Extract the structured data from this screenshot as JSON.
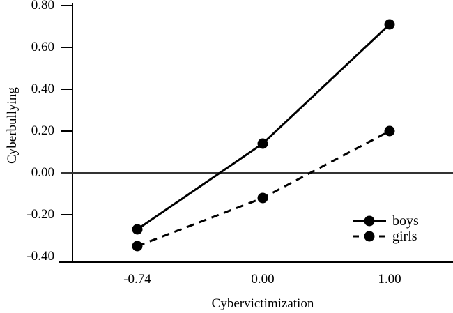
{
  "chart_data": {
    "type": "line",
    "title": "",
    "xlabel": "Cybervictimization",
    "ylabel": "Cyberbullying",
    "x_categories": [
      "-0.74",
      "0.00",
      "1.00"
    ],
    "x_values": [
      -0.74,
      0.0,
      1.0
    ],
    "x_tick_spacing": "equal",
    "y_tick_labels": [
      "0.80",
      "0.60",
      "0.40",
      "0.20",
      "0.00",
      "-0.20",
      "-0.40"
    ],
    "y_tick_values": [
      0.8,
      0.6,
      0.4,
      0.2,
      0.0,
      -0.2,
      -0.4
    ],
    "ylim": [
      -0.43,
      0.81
    ],
    "grid": "off",
    "zero_line": true,
    "legend_position": "inside-bottom-right",
    "series": [
      {
        "name": "boys",
        "style": "solid",
        "marker": "filled-circle",
        "values": [
          -0.27,
          0.14,
          0.71
        ]
      },
      {
        "name": "girls",
        "style": "dashed",
        "marker": "filled-circle",
        "values": [
          -0.35,
          -0.12,
          0.2
        ]
      }
    ],
    "colors": {
      "series": "#000000",
      "axis": "#000000",
      "zero_line": "#333333",
      "text": "#000000",
      "background": "#ffffff"
    }
  }
}
